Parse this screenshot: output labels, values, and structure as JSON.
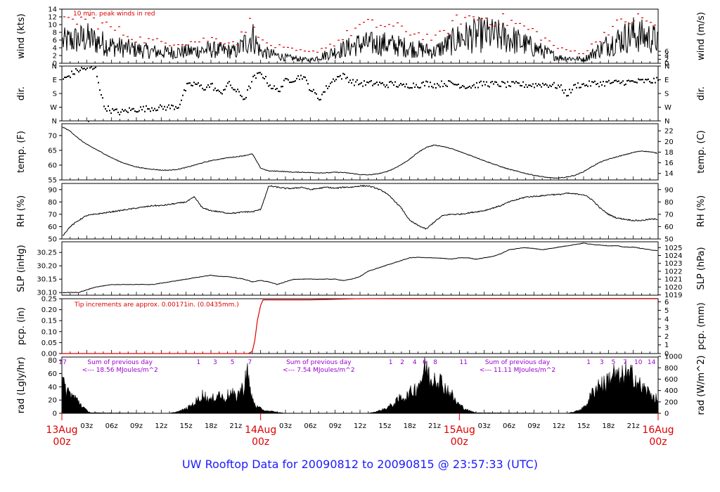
{
  "title": "UW Rooftop Data for 20090812  to  20090815 @ 23:57:33  (UTC)",
  "colors": {
    "data": "#000000",
    "peak": "#dd0000",
    "text_red": "#dd0000",
    "annotation": "#9900cc",
    "title": "#1a1aff"
  },
  "time_axis": {
    "start_hour": 0,
    "end_hour": 72,
    "tick_labels": [
      "03z",
      "06z",
      "09z",
      "12z",
      "15z",
      "18z",
      "21z",
      "03z",
      "06z",
      "09z",
      "12z",
      "15z",
      "18z",
      "21z",
      "03z",
      "06z",
      "09z",
      "12z",
      "15z",
      "18z",
      "21z"
    ],
    "tick_hours": [
      3,
      6,
      9,
      12,
      15,
      18,
      21,
      27,
      30,
      33,
      36,
      39,
      42,
      45,
      51,
      54,
      57,
      60,
      63,
      66,
      69
    ],
    "day_labels": [
      {
        "hour": 0,
        "line1": "13Aug",
        "line2": "00z"
      },
      {
        "hour": 24,
        "line1": "14Aug",
        "line2": "00z"
      },
      {
        "hour": 48,
        "line1": "15Aug",
        "line2": "00z"
      },
      {
        "hour": 72,
        "line1": "16Aug",
        "line2": "00z"
      }
    ]
  },
  "chart_data": [
    {
      "id": "wind",
      "type": "line",
      "ylabel_left": "wind (kts)",
      "ylabel_right": "wind (m/s)",
      "ylim": [
        0,
        14
      ],
      "yticks_left": [
        "0",
        "2",
        "4",
        "6",
        "8",
        "10",
        "12",
        "14"
      ],
      "yticks_right": [
        "0",
        "2",
        "4",
        "6"
      ],
      "annotation": "10 min. peak winds in red",
      "series": [
        {
          "name": "10 min. peak winds in red"
        }
      ],
      "x_hours": [
        0,
        3,
        6,
        9,
        12,
        15,
        18,
        21,
        23,
        24,
        27,
        30,
        33,
        36,
        39,
        42,
        45,
        48,
        51,
        54,
        57,
        60,
        63,
        66,
        69,
        72
      ],
      "values": [
        5.5,
        6.5,
        4.5,
        3.5,
        2.8,
        3.0,
        3.5,
        3.0,
        7.0,
        3.0,
        1.5,
        0.8,
        3.0,
        5.0,
        5.0,
        4.0,
        3.0,
        6.5,
        7.5,
        6.5,
        4.0,
        1.5,
        1.0,
        5.0,
        7.5,
        6.0
      ],
      "peaks": [
        11.5,
        13,
        10,
        7,
        6,
        6,
        7,
        6,
        13,
        6,
        4,
        3,
        6,
        11,
        11,
        9,
        7,
        13,
        13,
        12,
        9,
        4,
        3,
        10,
        13,
        11
      ]
    },
    {
      "id": "dir",
      "type": "scatter",
      "ylabel_left": "dir.",
      "ylabel_right": "dir.",
      "yticks_left": [
        "N",
        "W",
        "S",
        "E",
        "N"
      ],
      "yticks_right": [
        "N",
        "W",
        "S",
        "E",
        "N"
      ],
      "x_hours": [
        0,
        1,
        2,
        3,
        4,
        5,
        6,
        7,
        8,
        9,
        10,
        11,
        12,
        13,
        14,
        15,
        16,
        17,
        18,
        19,
        20,
        21,
        22,
        23,
        24,
        25,
        26,
        27,
        28,
        29,
        30,
        31,
        32,
        33,
        34,
        35,
        36,
        37,
        38,
        39,
        40,
        41,
        42,
        43,
        44,
        45,
        46,
        47,
        48,
        49,
        50,
        51,
        52,
        53,
        54,
        55,
        56,
        57,
        58,
        59,
        60,
        61,
        62,
        63,
        64,
        65,
        66,
        67,
        68,
        69,
        70,
        71,
        72
      ],
      "values_deg": [
        270,
        310,
        340,
        350,
        345,
        100,
        70,
        60,
        75,
        80,
        85,
        90,
        90,
        95,
        100,
        230,
        250,
        220,
        240,
        180,
        250,
        200,
        150,
        280,
        320,
        240,
        200,
        270,
        280,
        300,
        210,
        150,
        230,
        290,
        300,
        260,
        250,
        250,
        250,
        240,
        250,
        230,
        240,
        240,
        250,
        240,
        250,
        250,
        240,
        230,
        240,
        250,
        245,
        245,
        240,
        245,
        240,
        240,
        245,
        240,
        230,
        180,
        240,
        240,
        250,
        250,
        255,
        255,
        260,
        260,
        265,
        265,
        270
      ]
    },
    {
      "id": "temp",
      "type": "line",
      "ylabel_left": "temp. (F)",
      "ylabel_right": "temp. (C)",
      "ylim": [
        55,
        74
      ],
      "yticks_left": [
        "55",
        "60",
        "65",
        "70"
      ],
      "yticks_right": [
        "14",
        "16",
        "18",
        "20",
        "22"
      ],
      "x_hours": [
        0,
        1,
        2,
        3,
        4,
        5,
        6,
        7,
        8,
        9,
        10,
        11,
        12,
        13,
        14,
        15,
        16,
        17,
        18,
        19,
        20,
        21,
        22,
        23,
        24,
        25,
        26,
        27,
        28,
        29,
        30,
        31,
        32,
        33,
        34,
        35,
        36,
        37,
        38,
        39,
        40,
        41,
        42,
        43,
        44,
        45,
        46,
        47,
        48,
        49,
        50,
        51,
        52,
        53,
        54,
        55,
        56,
        57,
        58,
        59,
        60,
        61,
        62,
        63,
        64,
        65,
        66,
        67,
        68,
        69,
        70,
        71,
        72
      ],
      "values": [
        73,
        71.5,
        69,
        67,
        65.5,
        64,
        62.5,
        61.2,
        60.2,
        59.4,
        58.9,
        58.6,
        58.3,
        58.3,
        58.6,
        59.2,
        60,
        60.8,
        61.5,
        62,
        62.5,
        62.8,
        63.2,
        63.8,
        59,
        58,
        58,
        57.8,
        57.6,
        57.6,
        57.5,
        57.4,
        57.4,
        57.6,
        57.5,
        57.2,
        56.8,
        56.7,
        57,
        57.6,
        58.7,
        60.2,
        62,
        64.3,
        66,
        66.8,
        66.3,
        65.6,
        64.6,
        63.6,
        62.6,
        61.5,
        60.5,
        59.5,
        58.6,
        57.9,
        57.2,
        56.6,
        56.1,
        55.7,
        55.6,
        56,
        56.6,
        57.8,
        59.5,
        61,
        62,
        62.8,
        63.5,
        64.3,
        64.8,
        64.5,
        64
      ]
    },
    {
      "id": "rh",
      "type": "line",
      "ylabel_left": "RH (%)",
      "ylabel_right": "RH (%)",
      "ylim": [
        50,
        95
      ],
      "yticks_left": [
        "50",
        "60",
        "70",
        "80",
        "90"
      ],
      "yticks_right": [
        "50",
        "60",
        "70",
        "80",
        "90"
      ],
      "x_hours": [
        0,
        1,
        2,
        3,
        4,
        5,
        6,
        7,
        8,
        9,
        10,
        11,
        12,
        13,
        14,
        15,
        16,
        17,
        18,
        19,
        20,
        21,
        22,
        23,
        24,
        25,
        26,
        27,
        28,
        29,
        30,
        31,
        32,
        33,
        34,
        35,
        36,
        37,
        38,
        39,
        40,
        41,
        42,
        43,
        44,
        45,
        46,
        47,
        48,
        49,
        50,
        51,
        52,
        53,
        54,
        55,
        56,
        57,
        58,
        59,
        60,
        61,
        62,
        63,
        64,
        65,
        66,
        67,
        68,
        69,
        70,
        71,
        72
      ],
      "values": [
        52,
        60,
        65,
        69,
        70,
        71,
        72,
        73,
        74,
        75,
        76,
        77,
        77,
        78,
        79,
        80,
        84,
        75,
        73,
        72,
        71,
        71,
        72,
        72,
        74,
        93,
        92,
        91,
        91,
        92,
        90,
        91,
        92,
        91,
        92,
        92,
        93,
        93,
        91,
        88,
        82,
        75,
        65,
        61,
        58,
        64,
        69,
        70,
        70,
        71,
        72,
        73,
        75,
        77,
        80,
        82,
        84,
        84.5,
        85,
        86,
        86,
        87,
        86.5,
        86,
        82,
        75,
        70,
        67,
        66,
        65,
        65,
        66,
        66
      ]
    },
    {
      "id": "slp",
      "type": "line",
      "ylabel_left": "SLP (inHg)",
      "ylabel_right": "SLP (hPa)",
      "ylim": [
        30.09,
        30.29
      ],
      "yticks_left": [
        "30.10",
        "30.15",
        "30.20",
        "30.25"
      ],
      "yticks_right": [
        "1019",
        "1020",
        "1021",
        "1022",
        "1023",
        "1024",
        "1025"
      ],
      "x_hours": [
        0,
        1,
        2,
        3,
        4,
        5,
        6,
        7,
        8,
        9,
        10,
        11,
        12,
        13,
        14,
        15,
        16,
        17,
        18,
        19,
        20,
        21,
        22,
        23,
        24,
        25,
        26,
        27,
        28,
        29,
        30,
        31,
        32,
        33,
        34,
        35,
        36,
        37,
        38,
        39,
        40,
        41,
        42,
        43,
        44,
        45,
        46,
        47,
        48,
        49,
        50,
        51,
        52,
        53,
        54,
        55,
        56,
        57,
        58,
        59,
        60,
        61,
        62,
        63,
        64,
        65,
        66,
        67,
        68,
        69,
        70,
        71,
        72
      ],
      "values": [
        30.1,
        30.1,
        30.1,
        30.11,
        30.12,
        30.125,
        30.13,
        30.13,
        30.13,
        30.13,
        30.13,
        30.13,
        30.135,
        30.14,
        30.145,
        30.15,
        30.155,
        30.16,
        30.165,
        30.16,
        30.16,
        30.155,
        30.15,
        30.14,
        30.145,
        30.14,
        30.13,
        30.14,
        30.15,
        30.15,
        30.15,
        30.15,
        30.15,
        30.15,
        30.145,
        30.15,
        30.16,
        30.18,
        30.19,
        30.2,
        30.21,
        30.22,
        30.23,
        30.232,
        30.23,
        30.23,
        30.228,
        30.225,
        30.23,
        30.23,
        30.225,
        30.23,
        30.235,
        30.245,
        30.26,
        30.265,
        30.268,
        30.265,
        30.26,
        30.265,
        30.27,
        30.275,
        30.28,
        30.285,
        30.28,
        30.278,
        30.275,
        30.275,
        30.27,
        30.27,
        30.265,
        30.26,
        30.257
      ]
    },
    {
      "id": "pcp",
      "type": "line",
      "ylabel_left": "pcp. (in)",
      "ylabel_right": "pcp. (mm)",
      "ylim": [
        0,
        0.25
      ],
      "yticks_left": [
        "0.00",
        "0.05",
        "0.10",
        "0.15",
        "0.20",
        "0.25"
      ],
      "yticks_right": [
        "0",
        "1",
        "2",
        "3",
        "4",
        "5",
        "6"
      ],
      "annotation": "Tip increments are approx. 0.00171in. (0.0435mm.)",
      "x_hours": [
        0,
        22.5,
        23.0,
        23.3,
        23.6,
        24.0,
        24.3,
        30,
        36,
        40,
        72
      ],
      "values": [
        0,
        0,
        0.01,
        0.06,
        0.15,
        0.22,
        0.245,
        0.245,
        0.25,
        0.251,
        0.251
      ]
    },
    {
      "id": "rad",
      "type": "area",
      "ylabel_left": "rad (Lgly/hr)",
      "ylabel_right": "rad (W/m^2)",
      "ylim": [
        0,
        85
      ],
      "yticks_left": [
        "0",
        "20",
        "40",
        "60",
        "80"
      ],
      "yticks_right": [
        "0",
        "200",
        "400",
        "600",
        "800",
        "1000"
      ],
      "day_sums": [
        {
          "hour": 6,
          "line1": "Sum of previous day",
          "line2": "<--- 18.56 MJoules/m^2"
        },
        {
          "hour": 30,
          "line1": "Sum of previous day",
          "line2": "<--- 7.54 MJoules/m^2"
        },
        {
          "hour": 54,
          "line1": "Sum of previous day",
          "line2": "<--- 11.11 MJoules/m^2"
        }
      ],
      "hour_marks": [
        {
          "hour": 0.1,
          "label": "17"
        },
        {
          "hour": 16.5,
          "label": "1"
        },
        {
          "hour": 18.5,
          "label": "3"
        },
        {
          "hour": 20.6,
          "label": "5"
        },
        {
          "hour": 22.7,
          "label": "7"
        },
        {
          "hour": 39.7,
          "label": "1"
        },
        {
          "hour": 41.1,
          "label": "2"
        },
        {
          "hour": 42.6,
          "label": "4"
        },
        {
          "hour": 43.8,
          "label": "6"
        },
        {
          "hour": 45.1,
          "label": "8"
        },
        {
          "hour": 48.5,
          "label": "11"
        },
        {
          "hour": 63.6,
          "label": "1"
        },
        {
          "hour": 65.2,
          "label": "3"
        },
        {
          "hour": 66.6,
          "label": "5"
        },
        {
          "hour": 68.0,
          "label": "7"
        },
        {
          "hour": 69.6,
          "label": "10"
        },
        {
          "hour": 71.2,
          "label": "14"
        }
      ],
      "x_hours": [
        0,
        0.5,
        1,
        1.5,
        2,
        2.5,
        3,
        3.5,
        13,
        14,
        15,
        16,
        16.5,
        17,
        17.5,
        18,
        18.5,
        19,
        19.5,
        20,
        20.5,
        21,
        21.5,
        22,
        22.3,
        22.6,
        23,
        23.5,
        24,
        24.5,
        25,
        26,
        27,
        37,
        38,
        39,
        40,
        40.5,
        41,
        41.5,
        42,
        42.5,
        43,
        43.5,
        44,
        44.5,
        45,
        45.5,
        46,
        46.5,
        47,
        47.5,
        48,
        48.5,
        49,
        49.5,
        50,
        61,
        62,
        63,
        63.5,
        64,
        64.5,
        65,
        65.5,
        66,
        66.5,
        67,
        67.5,
        68,
        68.5,
        69,
        69.5,
        70,
        70.5,
        71,
        71.5,
        72
      ],
      "values": [
        55,
        42,
        35,
        28,
        22,
        12,
        5,
        1,
        0,
        3,
        8,
        18,
        25,
        33,
        28,
        22,
        30,
        35,
        25,
        32,
        35,
        28,
        40,
        45,
        85,
        50,
        25,
        12,
        8,
        5,
        4,
        2,
        0,
        0,
        3,
        8,
        16,
        22,
        30,
        28,
        35,
        42,
        50,
        65,
        85,
        55,
        70,
        60,
        52,
        42,
        35,
        22,
        15,
        10,
        6,
        3,
        1,
        0,
        3,
        10,
        20,
        35,
        45,
        55,
        50,
        60,
        70,
        65,
        58,
        75,
        62,
        70,
        55,
        45,
        42,
        35,
        30,
        22
      ]
    }
  ]
}
